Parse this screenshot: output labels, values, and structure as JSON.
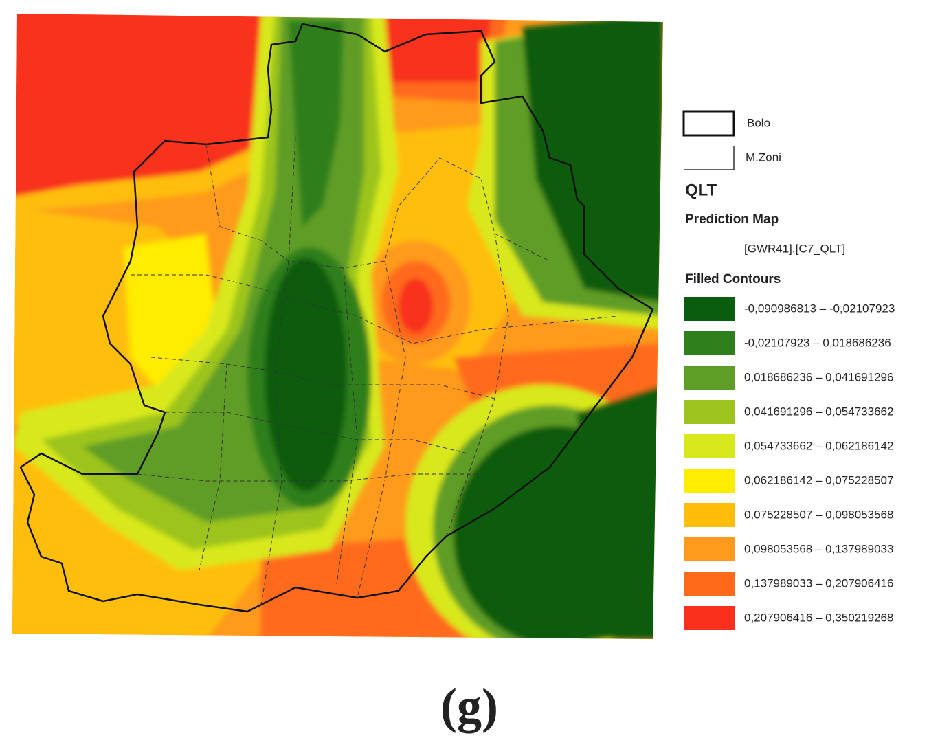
{
  "legend": {
    "layers": [
      {
        "label": "Bolo"
      },
      {
        "label": "M.Zoni"
      }
    ],
    "title": "QLT",
    "subtitle": "Prediction Map",
    "field": "[GWR41].[C7_QLT]",
    "section": "Filled Contours",
    "classes": [
      {
        "label": "-0,090986813 – -0,02107923",
        "color": "#0a5c0e"
      },
      {
        "label": "-0,02107923 – 0,018686236",
        "color": "#2f7f1c"
      },
      {
        "label": "0,018686236 – 0,041691296",
        "color": "#5e9d26"
      },
      {
        "label": "0,041691296 – 0,054733662",
        "color": "#9dc41e"
      },
      {
        "label": "0,054733662 – 0,062186142",
        "color": "#d8e81c"
      },
      {
        "label": "0,062186142 – 0,075228507",
        "color": "#ffec00"
      },
      {
        "label": "0,075228507 – 0,098053568",
        "color": "#ffbe0a"
      },
      {
        "label": "0,098053568 – 0,137989033",
        "color": "#ff9a1c"
      },
      {
        "label": "0,137989033 – 0,207906416",
        "color": "#ff6a1a"
      },
      {
        "label": "0,207906416 – 0,350219268",
        "color": "#f8301c"
      }
    ]
  },
  "caption": "(g)"
}
